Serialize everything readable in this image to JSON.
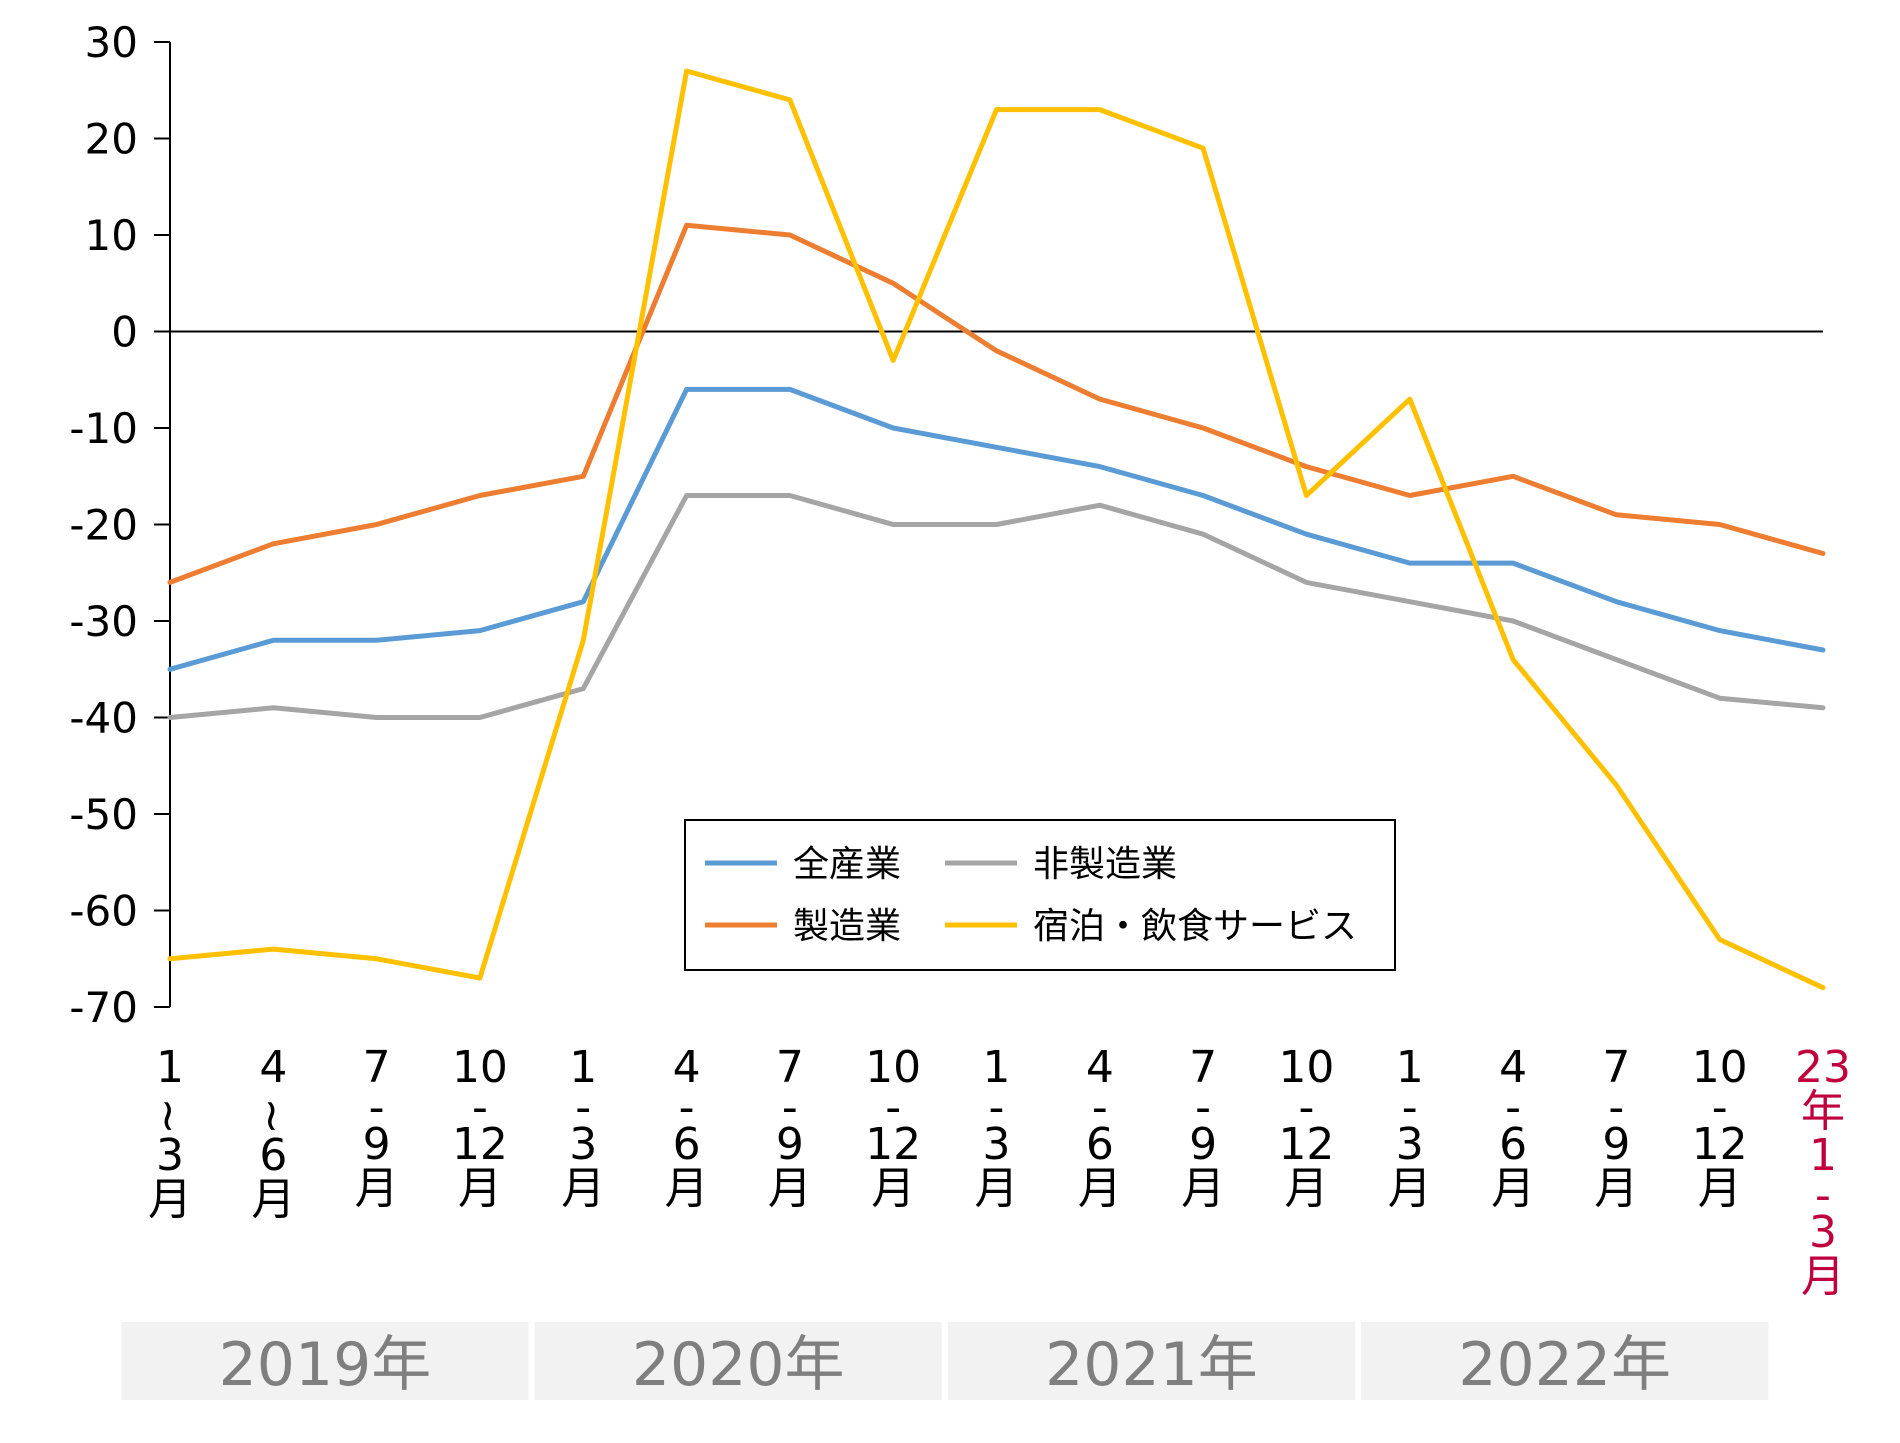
{
  "chart_data": {
    "type": "line",
    "categories": [
      "2019年1~3月",
      "2019年4~6月",
      "2019年7-9月",
      "2019年10-12月",
      "2020年1-3月",
      "2020年4-6月",
      "2020年7-9月",
      "2020年10-12月",
      "2021年1-3月",
      "2021年4-6月",
      "2021年7-9月",
      "2021年10-12月",
      "2022年1-3月",
      "2022年4-6月",
      "2022年7-9月",
      "2022年10-12月",
      "23年1-3月"
    ],
    "x_tick_lines": [
      [
        "1",
        "~",
        "3",
        "月"
      ],
      [
        "4",
        "~",
        "6",
        "月"
      ],
      [
        "7",
        "-",
        "9",
        "月"
      ],
      [
        "10",
        "-",
        "12",
        "月"
      ],
      [
        "1",
        "-",
        "3",
        "月"
      ],
      [
        "4",
        "-",
        "6",
        "月"
      ],
      [
        "7",
        "-",
        "9",
        "月"
      ],
      [
        "10",
        "-",
        "12",
        "月"
      ],
      [
        "1",
        "-",
        "3",
        "月"
      ],
      [
        "4",
        "-",
        "6",
        "月"
      ],
      [
        "7",
        "-",
        "9",
        "月"
      ],
      [
        "10",
        "-",
        "12",
        "月"
      ],
      [
        "1",
        "-",
        "3",
        "月"
      ],
      [
        "4",
        "-",
        "6",
        "月"
      ],
      [
        "7",
        "-",
        "9",
        "月"
      ],
      [
        "10",
        "-",
        "12",
        "月"
      ],
      [
        "23",
        "年",
        "1",
        "-",
        "3",
        "月"
      ]
    ],
    "year_groups": [
      {
        "label": "2019年",
        "start": 0,
        "end": 3
      },
      {
        "label": "2020年",
        "start": 4,
        "end": 7
      },
      {
        "label": "2021年",
        "start": 8,
        "end": 11
      },
      {
        "label": "2022年",
        "start": 12,
        "end": 15
      }
    ],
    "series": [
      {
        "name": "全産業",
        "color": "#5B9BD5",
        "values": [
          -35,
          -32,
          -32,
          -31,
          -28,
          -6,
          -6,
          -10,
          -12,
          -14,
          -17,
          -21,
          -24,
          -24,
          -28,
          -31,
          -33
        ]
      },
      {
        "name": "製造業",
        "color": "#ED7D31",
        "values": [
          -26,
          -22,
          -20,
          -17,
          -15,
          11,
          10,
          5,
          -2,
          -7,
          -10,
          -14,
          -17,
          -15,
          -19,
          -20,
          -23
        ]
      },
      {
        "name": "非製造業",
        "color": "#A5A5A5",
        "values": [
          -40,
          -39,
          -40,
          -40,
          -37,
          -17,
          -17,
          -20,
          -20,
          -18,
          -21,
          -26,
          -28,
          -30,
          -34,
          -38,
          -39
        ]
      },
      {
        "name": "宿泊・飲食サービス",
        "color": "#FFC000",
        "values": [
          -65,
          -64,
          -65,
          -67,
          -32,
          27,
          24,
          -3,
          23,
          23,
          19,
          -17,
          -7,
          -34,
          -47,
          -63,
          -68
        ]
      }
    ],
    "ylim": [
      -70,
      30
    ],
    "yticks": [
      30,
      20,
      10,
      0,
      -10,
      -20,
      -30,
      -40,
      -50,
      -60,
      -70
    ],
    "zero_line": true,
    "legend_rows": [
      [
        "全産業",
        "非製造業"
      ],
      [
        "製造業",
        "宿泊・飲食サービス"
      ]
    ],
    "legend_position": "bottom-center",
    "colors": {
      "axis": "#000000",
      "last_category_label": "#C0003C",
      "year_band": "#F2F2F2",
      "year_text": "#7F7F7F"
    }
  }
}
